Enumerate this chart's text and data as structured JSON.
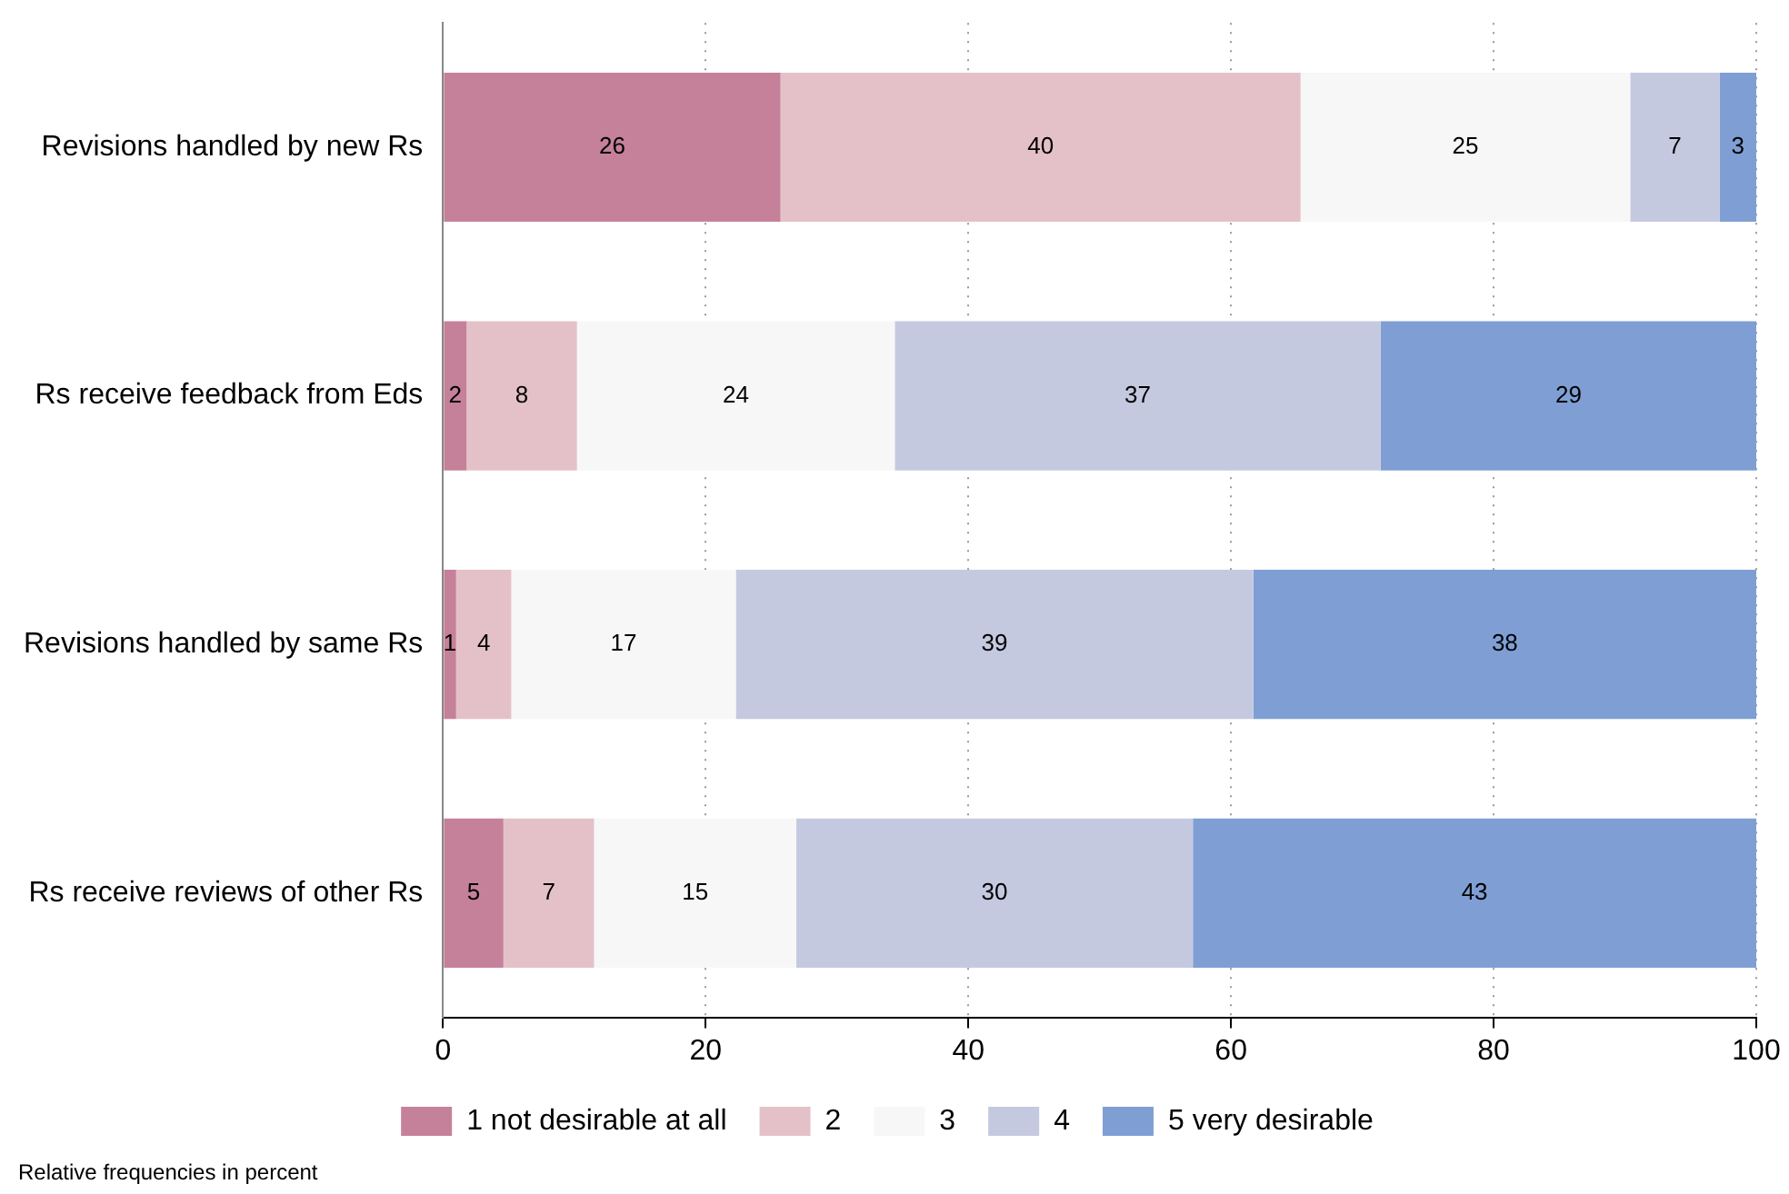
{
  "chart_data": {
    "type": "bar",
    "orientation": "horizontal",
    "stacked": true,
    "categories": [
      "Revisions handled by new Rs",
      "Rs receive feedback from Eds",
      "Revisions handled by same Rs",
      "Rs receive reviews of other Rs"
    ],
    "series": [
      {
        "name": "1 not desirable at all",
        "color": "#c6819a",
        "values": [
          25.7,
          1.8,
          1.0,
          4.6
        ],
        "value_labels": [
          "26",
          "2",
          "1",
          "5"
        ]
      },
      {
        "name": "2",
        "color": "#e4c1c8",
        "values": [
          39.6,
          8.4,
          4.2,
          6.9
        ],
        "value_labels": [
          "40",
          "8",
          "4",
          "7"
        ]
      },
      {
        "name": "3",
        "color": "#f7f7f7",
        "values": [
          25.1,
          24.2,
          17.1,
          15.4
        ],
        "value_labels": [
          "25",
          "24",
          "17",
          "15"
        ]
      },
      {
        "name": "4",
        "color": "#c5c9e0",
        "values": [
          6.8,
          37.0,
          39.4,
          30.2
        ],
        "value_labels": [
          "7",
          "37",
          "39",
          "30"
        ]
      },
      {
        "name": "5 very desirable",
        "color": "#7f9fd4",
        "values": [
          2.8,
          28.6,
          38.3,
          42.9
        ],
        "value_labels": [
          "3",
          "29",
          "38",
          "43"
        ]
      }
    ],
    "xlim": [
      0,
      100
    ],
    "xticks": [
      0,
      20,
      40,
      60,
      80,
      100
    ],
    "grid": "x",
    "legend": "bottom",
    "annotations": [
      "Relative frequencies in percent"
    ]
  }
}
